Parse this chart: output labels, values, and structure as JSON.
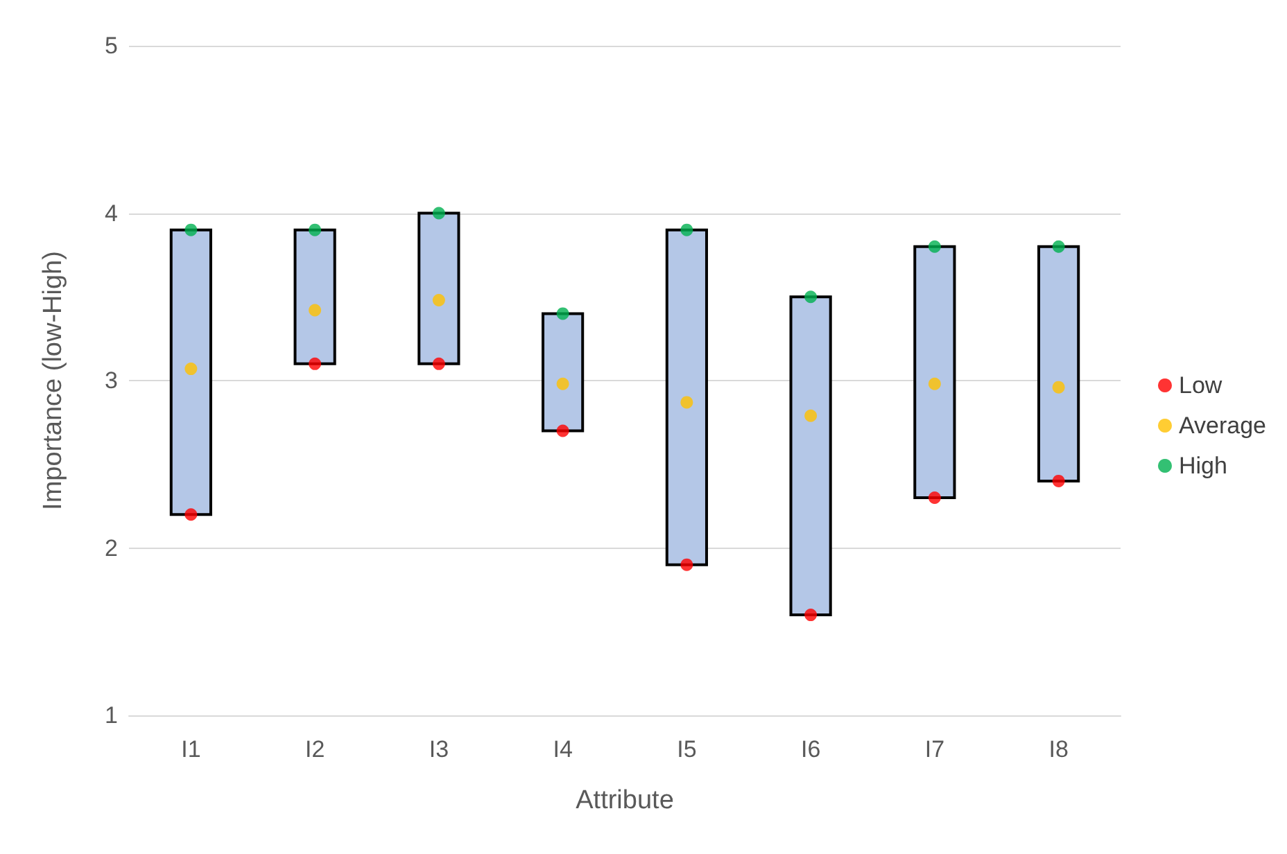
{
  "chart_data": {
    "type": "bar",
    "xlabel": "Attribute",
    "ylabel": "Importance (low-High)",
    "categories": [
      "I1",
      "I2",
      "I3",
      "I4",
      "I5",
      "I6",
      "I7",
      "I8"
    ],
    "series": [
      {
        "color": "#b4c7e7",
        "base": [
          2.2,
          3.1,
          3.1,
          2.7,
          1.9,
          1.6,
          2.3,
          2.4
        ],
        "values": [
          1.7,
          0.8,
          0.9,
          0.7,
          2.0,
          1.9,
          1.5,
          1.4
        ]
      },
      {
        "type": "scatter",
        "name": "Low",
        "color": "#ff0000",
        "x": [
          "I1",
          "I2",
          "I3",
          "I4",
          "I5",
          "I6",
          "I7",
          "I8"
        ],
        "values": [
          2.2,
          3.1,
          3.1,
          2.7,
          1.9,
          1.6,
          2.3,
          2.4
        ]
      },
      {
        "type": "scatter",
        "name": "Average",
        "color": "#ffc000",
        "x": [
          "I1",
          "I2",
          "I3",
          "I4",
          "I5",
          "I6",
          "I7",
          "I8"
        ],
        "values": [
          3.07,
          3.42,
          3.48,
          2.98,
          2.87,
          2.79,
          2.98,
          2.96
        ]
      },
      {
        "type": "scatter",
        "name": "High",
        "color": "#00b050",
        "x": [
          "I1",
          "I2",
          "I3",
          "I4",
          "I5",
          "I6",
          "I7",
          "I8"
        ],
        "values": [
          3.9,
          3.9,
          4.0,
          3.4,
          3.9,
          3.5,
          3.8,
          3.8
        ]
      }
    ],
    "ylim": [
      1,
      5
    ],
    "yticks": [
      1,
      2,
      3,
      4,
      5
    ],
    "grid": "y",
    "legend": "right",
    "marker": "circle"
  }
}
